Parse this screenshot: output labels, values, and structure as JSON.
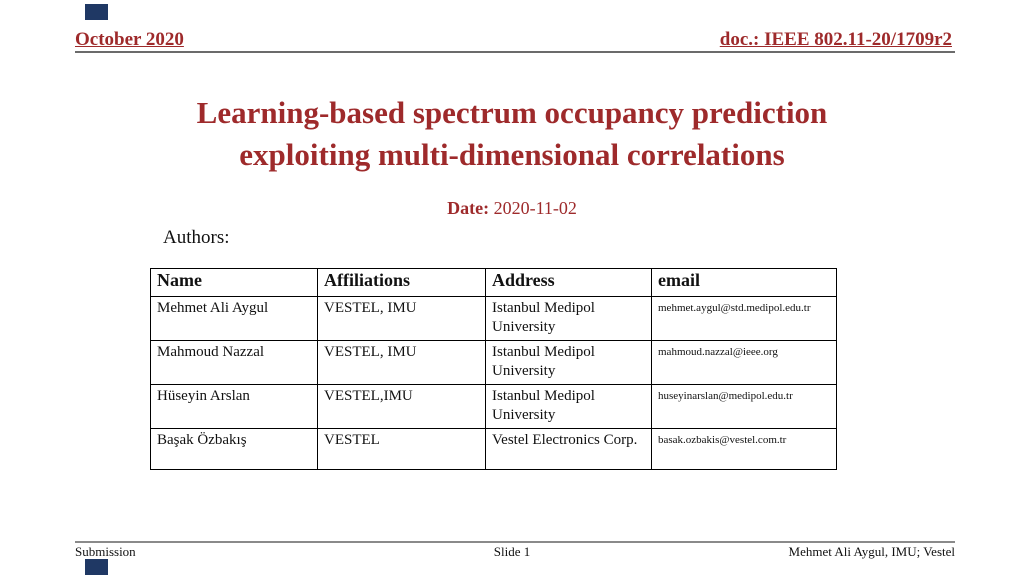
{
  "slide": {
    "header": {
      "left": "October 2020",
      "right": "doc.: IEEE 802.11-20/1709r2"
    },
    "title": {
      "line1": "Learning-based spectrum occupancy prediction",
      "line2": "exploiting multi-dimensional correlations"
    },
    "date": {
      "label": "Date:",
      "value": " 2020-11-02"
    },
    "authors_label": "Authors:",
    "table": {
      "headers": [
        "Name",
        "Affiliations",
        "Address",
        "email"
      ],
      "rows": [
        {
          "name": "Mehmet Ali Aygul",
          "affiliations": "VESTEL, IMU",
          "address": "Istanbul Medipol University",
          "email": "mehmet.aygul@std.medipol.edu.tr"
        },
        {
          "name": "Mahmoud Nazzal",
          "affiliations": "VESTEL, IMU",
          "address": "Istanbul Medipol University",
          "email": "mahmoud.nazzal@ieee.org"
        },
        {
          "name": "Hüseyin Arslan",
          "affiliations": "VESTEL,IMU",
          "address": "Istanbul Medipol University",
          "email": "huseyinarslan@medipol.edu.tr"
        },
        {
          "name": "Başak Özbakış",
          "affiliations": "VESTEL",
          "address": "Vestel Electronics Corp.",
          "email": "basak.ozbakis@vestel.com.tr"
        }
      ]
    },
    "footer": {
      "left": "Submission",
      "center": "Slide 1",
      "right": "Mehmet Ali Aygul, IMU; Vestel"
    },
    "colors": {
      "heading_maroon": "#9E2A2B",
      "corner_navy": "#1F3864"
    }
  }
}
